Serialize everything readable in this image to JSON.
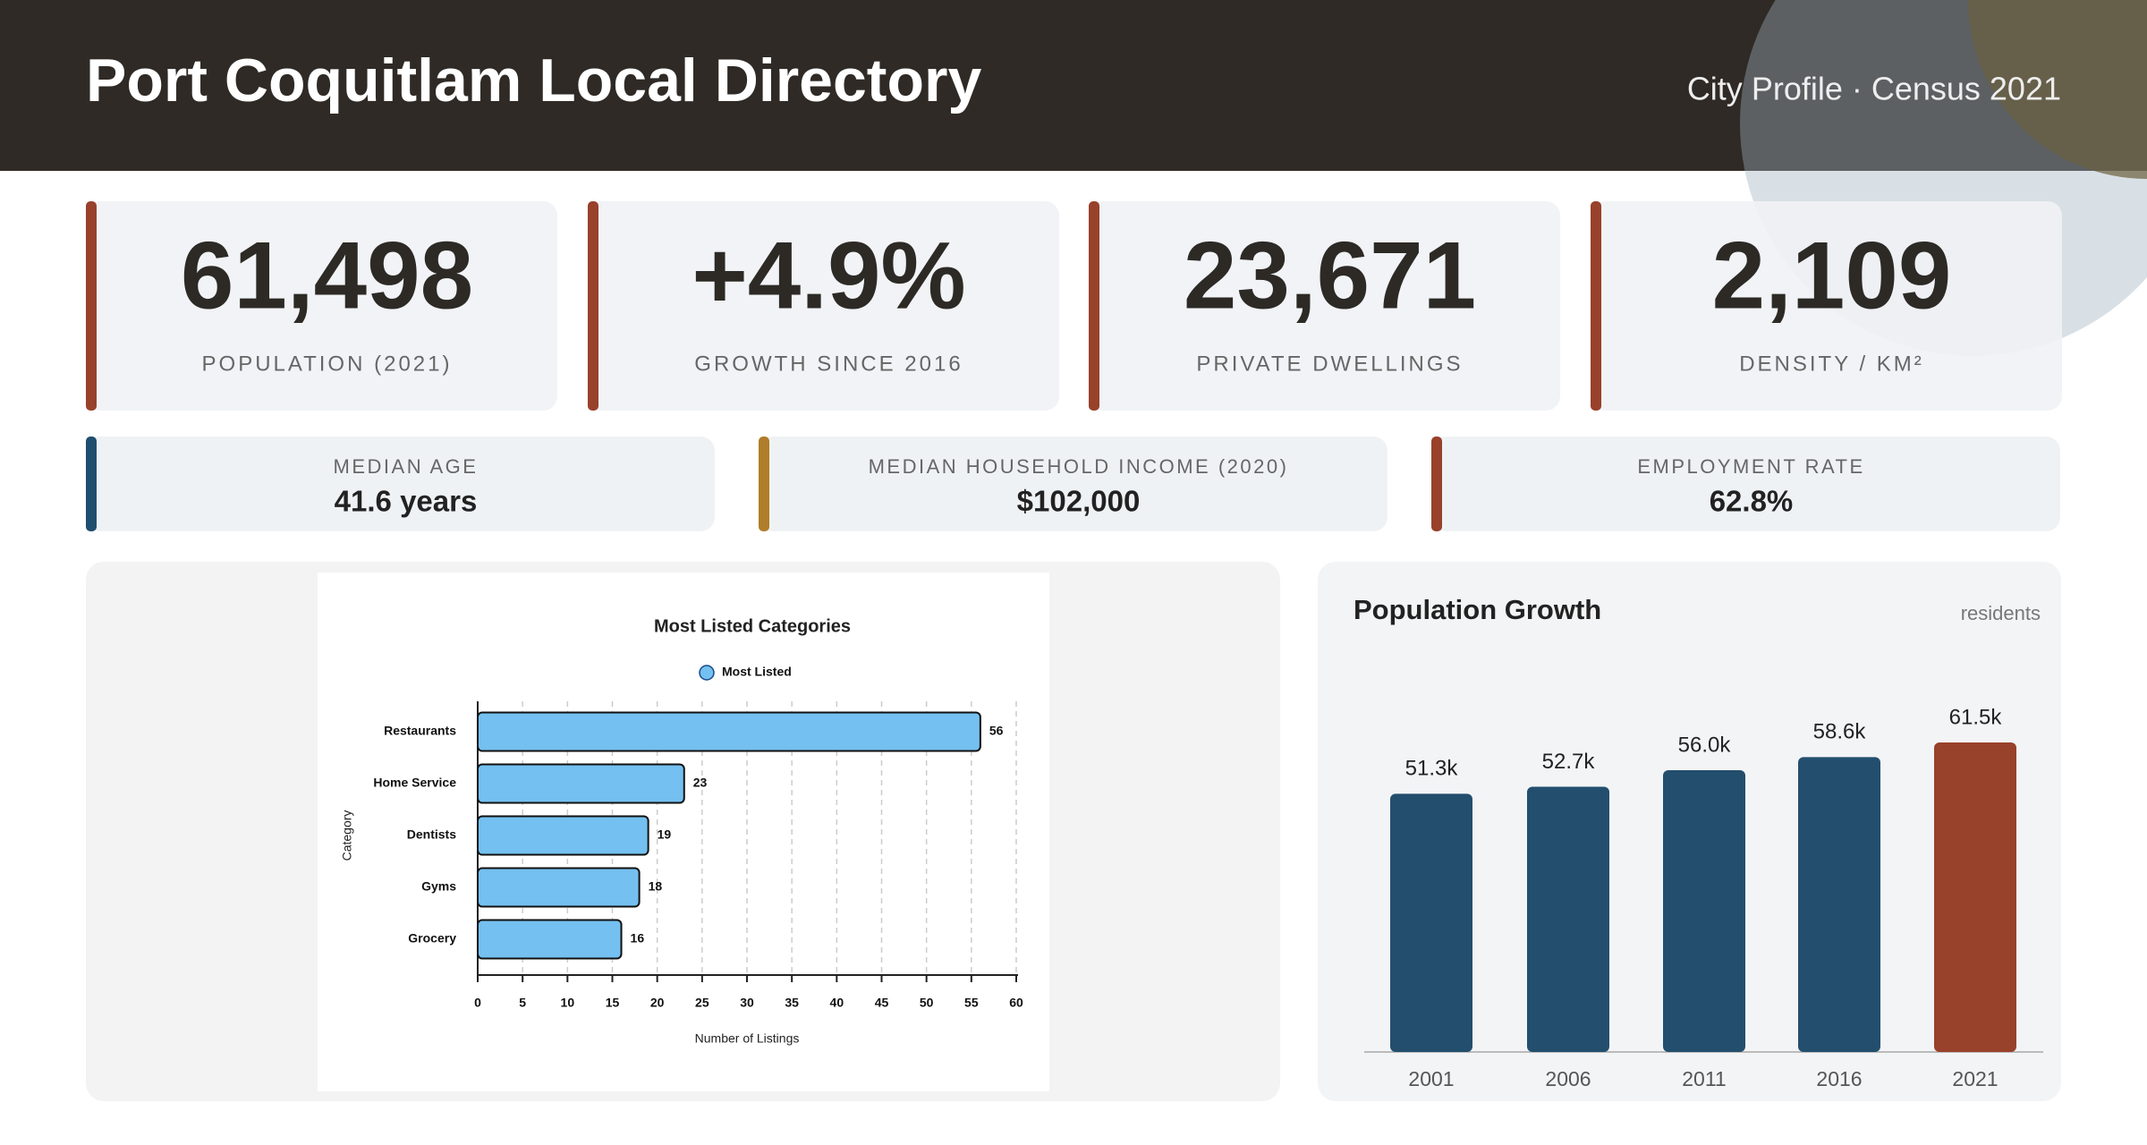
{
  "header": {
    "title": "Port Coquitlam Local Directory",
    "subtitle": "City Profile · Census 2021"
  },
  "stats": [
    {
      "value": "61,498",
      "label": "POPULATION (2021)"
    },
    {
      "value": "+4.9%",
      "label": "GROWTH SINCE 2016"
    },
    {
      "value": "23,671",
      "label": "PRIVATE DWELLINGS"
    },
    {
      "value": "2,109",
      "label": "DENSITY / KM²"
    }
  ],
  "facts": [
    {
      "label": "MEDIAN AGE",
      "value": "41.6 years"
    },
    {
      "label": "MEDIAN HOUSEHOLD INCOME (2020)",
      "value": "$102,000"
    },
    {
      "label": "EMPLOYMENT RATE",
      "value": "62.8%"
    }
  ],
  "chart_data": [
    {
      "type": "barh",
      "title": "Most Listed Categories",
      "x_label": "Number of Listings",
      "y_label": "Category",
      "categories": [
        "Restaurants",
        "Home Service",
        "Dentists",
        "Gyms",
        "Grocery"
      ],
      "series": [
        {
          "name": "Most Listed",
          "color": "#74c0f0",
          "values": [
            56,
            23,
            19,
            18,
            16
          ]
        }
      ],
      "xlim": [
        0,
        60
      ],
      "xticks": [
        0,
        5,
        10,
        15,
        20,
        25,
        30,
        35,
        40,
        45,
        50,
        55,
        60
      ],
      "grid": true
    },
    {
      "type": "bar",
      "title": "Population Growth",
      "unit_label": "residents",
      "categories": [
        "2001",
        "2006",
        "2011",
        "2016",
        "2021"
      ],
      "values": [
        51300,
        52700,
        56000,
        58600,
        61500
      ],
      "value_labels": [
        "51.3k",
        "52.7k",
        "56.0k",
        "58.6k",
        "61.5k"
      ],
      "colors": [
        "#234e6e",
        "#234e6e",
        "#234e6e",
        "#234e6e",
        "#98412b"
      ]
    }
  ]
}
